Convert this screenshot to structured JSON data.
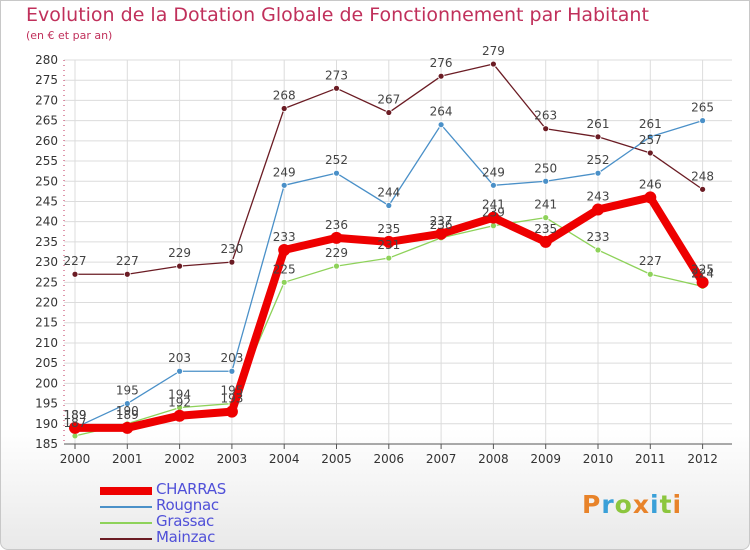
{
  "title": "Evolution de la Dotation Globale de Fonctionnement par Habitant",
  "subtitle": "(en € et par an)",
  "logo": {
    "text": "Proxiti",
    "colors": [
      "#e8832a",
      "#3aa0d8",
      "#8cc63e",
      "#e8832a",
      "#3aa0d8",
      "#8cc63e",
      "#e8832a"
    ]
  },
  "chart_data": {
    "type": "line",
    "title": "Evolution de la Dotation Globale de Fonctionnement par Habitant",
    "subtitle": "(en € et par an)",
    "xlabel": "",
    "ylabel": "",
    "categories": [
      "2000",
      "2001",
      "2002",
      "2003",
      "2004",
      "2005",
      "2006",
      "2007",
      "2008",
      "2009",
      "2010",
      "2011",
      "2012"
    ],
    "ylim": [
      185,
      280
    ],
    "yticks": [
      185,
      190,
      195,
      200,
      205,
      210,
      215,
      220,
      225,
      230,
      235,
      240,
      245,
      250,
      255,
      260,
      265,
      270,
      275,
      280
    ],
    "grid": true,
    "legend_position": "bottom-left",
    "series": [
      {
        "name": "CHARRAS",
        "color": "#ee0000",
        "values": [
          189,
          189,
          192,
          193,
          233,
          236,
          235,
          237,
          241,
          235,
          243,
          246,
          225
        ]
      },
      {
        "name": "Rougnac",
        "color": "#4a90c8",
        "values": [
          189,
          195,
          203,
          203,
          249,
          252,
          244,
          264,
          249,
          250,
          252,
          261,
          265
        ]
      },
      {
        "name": "Grassac",
        "color": "#8ed25a",
        "values": [
          187,
          190,
          194,
          195,
          225,
          229,
          231,
          236,
          239,
          241,
          233,
          227,
          224
        ]
      },
      {
        "name": "Mainzac",
        "color": "#6b1c24",
        "values": [
          227,
          227,
          229,
          230,
          268,
          273,
          267,
          276,
          279,
          263,
          261,
          257,
          248
        ]
      }
    ]
  }
}
